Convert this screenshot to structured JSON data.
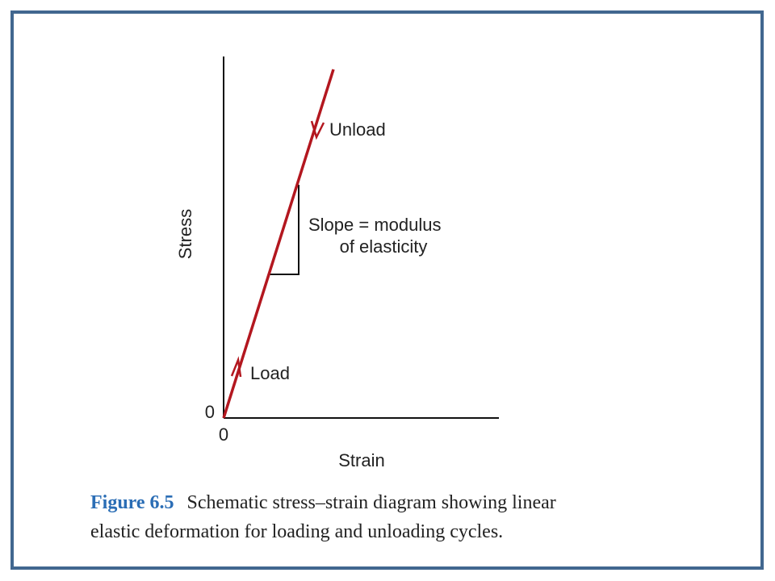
{
  "diagram": {
    "y_axis_label": "Stress",
    "x_axis_label": "Strain",
    "y_origin_label": "0",
    "x_origin_label": "0",
    "annotations": {
      "unload": "Unload",
      "load": "Load",
      "slope": [
        "Slope = modulus",
        "of elasticity"
      ]
    }
  },
  "caption": {
    "label": "Figure 6.5",
    "text": [
      "Schematic stress–strain diagram showing linear",
      "elastic deformation for loading and unloading cycles."
    ]
  }
}
